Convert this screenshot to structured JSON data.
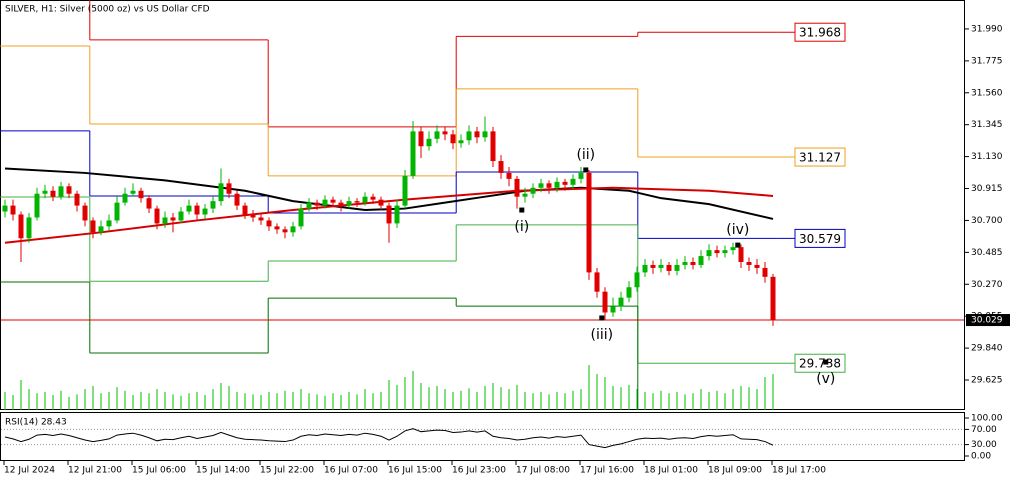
{
  "chart_data": {
    "type": "candlestick",
    "title": "SILVER, H1:  Silver (5000 oz) vs US Dollar CFD",
    "ylim": [
      29.423,
      32.185
    ],
    "yticks": [
      {
        "value": 31.99,
        "label": "31.990"
      },
      {
        "value": 31.775,
        "label": "31.775"
      },
      {
        "value": 31.56,
        "label": "31.560"
      },
      {
        "value": 31.345,
        "label": "31.345"
      },
      {
        "value": 31.13,
        "label": "31.130"
      },
      {
        "value": 30.915,
        "label": "30.915"
      },
      {
        "value": 30.7,
        "label": "30.700"
      },
      {
        "value": 30.485,
        "label": "30.485"
      },
      {
        "value": 30.27,
        "label": "30.270"
      },
      {
        "value": 30.055,
        "label": "30.055"
      },
      {
        "value": 29.84,
        "label": "29.840"
      },
      {
        "value": 29.625,
        "label": "29.625"
      }
    ],
    "x_labels": [
      "12 Jul 2024",
      "12 Jul 21:00",
      "15 Jul 06:00",
      "15 Jul 14:00",
      "15 Jul 22:00",
      "16 Jul 07:00",
      "16 Jul 15:00",
      "16 Jul 23:00",
      "17 Jul 08:00",
      "17 Jul 16:00",
      "18 Jul 01:00",
      "18 Jul 09:00",
      "18 Jul 17:00"
    ],
    "up_color": "#00b400",
    "down_color": "#e00000",
    "ohlc": [
      [
        30.76,
        30.84,
        30.72,
        30.8
      ],
      [
        30.8,
        30.84,
        30.7,
        30.74
      ],
      [
        30.74,
        30.76,
        30.42,
        30.58
      ],
      [
        30.58,
        30.75,
        30.55,
        30.72
      ],
      [
        30.72,
        30.92,
        30.7,
        30.88
      ],
      [
        30.88,
        30.94,
        30.85,
        30.9
      ],
      [
        30.9,
        30.93,
        30.83,
        30.86
      ],
      [
        30.86,
        30.96,
        30.84,
        30.93
      ],
      [
        30.93,
        30.95,
        30.85,
        30.88
      ],
      [
        30.88,
        30.9,
        30.76,
        30.8
      ],
      [
        30.8,
        30.82,
        30.66,
        30.7
      ],
      [
        30.7,
        30.72,
        30.58,
        30.62
      ],
      [
        30.62,
        30.7,
        30.6,
        30.66
      ],
      [
        30.66,
        30.74,
        30.63,
        30.7
      ],
      [
        30.7,
        30.86,
        30.68,
        30.82
      ],
      [
        30.82,
        30.92,
        30.8,
        30.88
      ],
      [
        30.88,
        30.95,
        30.86,
        30.9
      ],
      [
        30.9,
        30.92,
        30.82,
        30.85
      ],
      [
        30.85,
        30.87,
        30.75,
        30.78
      ],
      [
        30.78,
        30.8,
        30.64,
        30.68
      ],
      [
        30.68,
        30.76,
        30.65,
        30.72
      ],
      [
        30.72,
        30.75,
        30.62,
        30.7
      ],
      [
        30.7,
        30.79,
        30.68,
        30.76
      ],
      [
        30.76,
        30.84,
        30.74,
        30.8
      ],
      [
        30.8,
        30.82,
        30.7,
        30.74
      ],
      [
        30.74,
        30.81,
        30.71,
        30.78
      ],
      [
        30.78,
        30.86,
        30.75,
        30.83
      ],
      [
        30.83,
        31.05,
        30.8,
        30.95
      ],
      [
        30.95,
        30.98,
        30.85,
        30.88
      ],
      [
        30.88,
        30.9,
        30.77,
        30.8
      ],
      [
        30.8,
        30.82,
        30.71,
        30.74
      ],
      [
        30.74,
        30.77,
        30.69,
        30.72
      ],
      [
        30.72,
        30.75,
        30.67,
        30.7
      ],
      [
        30.7,
        30.72,
        30.63,
        30.66
      ],
      [
        30.66,
        30.68,
        30.61,
        30.64
      ],
      [
        30.64,
        30.66,
        30.58,
        30.62
      ],
      [
        30.62,
        30.69,
        30.59,
        30.66
      ],
      [
        30.66,
        30.81,
        30.64,
        30.78
      ],
      [
        30.78,
        30.85,
        30.76,
        30.82
      ],
      [
        30.82,
        30.84,
        30.77,
        30.8
      ],
      [
        30.8,
        30.87,
        30.78,
        30.84
      ],
      [
        30.84,
        30.86,
        30.79,
        30.82
      ],
      [
        30.82,
        30.84,
        30.76,
        30.8
      ],
      [
        30.8,
        30.86,
        30.78,
        30.83
      ],
      [
        30.83,
        30.85,
        30.79,
        30.82
      ],
      [
        30.82,
        30.89,
        30.8,
        30.86
      ],
      [
        30.86,
        30.88,
        30.81,
        30.84
      ],
      [
        30.84,
        30.86,
        30.77,
        30.8
      ],
      [
        30.8,
        30.82,
        30.55,
        30.68
      ],
      [
        30.68,
        30.84,
        30.65,
        30.8
      ],
      [
        30.8,
        31.04,
        30.78,
        31.0
      ],
      [
        31.0,
        31.37,
        30.98,
        31.3
      ],
      [
        31.3,
        31.33,
        31.12,
        31.2
      ],
      [
        31.2,
        31.3,
        31.17,
        31.25
      ],
      [
        31.25,
        31.34,
        31.22,
        31.3
      ],
      [
        31.3,
        31.33,
        31.24,
        31.28
      ],
      [
        31.28,
        31.31,
        31.18,
        31.22
      ],
      [
        31.22,
        31.28,
        31.19,
        31.24
      ],
      [
        31.24,
        31.34,
        31.21,
        31.3
      ],
      [
        31.3,
        31.33,
        31.22,
        31.26
      ],
      [
        31.26,
        31.4,
        31.23,
        31.3
      ],
      [
        31.3,
        31.33,
        31.06,
        31.1
      ],
      [
        31.1,
        31.14,
        30.98,
        31.02
      ],
      [
        31.02,
        31.06,
        30.93,
        30.98
      ],
      [
        30.98,
        31.0,
        30.78,
        30.86
      ],
      [
        30.86,
        30.92,
        30.82,
        30.88
      ],
      [
        30.88,
        30.95,
        30.85,
        30.92
      ],
      [
        30.92,
        30.98,
        30.89,
        30.95
      ],
      [
        30.95,
        30.97,
        30.88,
        30.92
      ],
      [
        30.92,
        30.99,
        30.89,
        30.96
      ],
      [
        30.96,
        30.98,
        30.9,
        30.94
      ],
      [
        30.94,
        31.01,
        30.91,
        30.98
      ],
      [
        30.98,
        31.06,
        30.95,
        31.02
      ],
      [
        31.02,
        31.04,
        30.3,
        30.35
      ],
      [
        30.35,
        30.38,
        30.18,
        30.22
      ],
      [
        30.22,
        30.25,
        30.03,
        30.08
      ],
      [
        30.08,
        30.18,
        30.05,
        30.12
      ],
      [
        30.12,
        30.22,
        30.09,
        30.18
      ],
      [
        30.18,
        30.29,
        30.15,
        30.25
      ],
      [
        30.25,
        30.39,
        30.22,
        30.35
      ],
      [
        30.35,
        30.44,
        30.32,
        30.4
      ],
      [
        30.4,
        30.43,
        30.34,
        30.38
      ],
      [
        30.38,
        30.44,
        30.35,
        30.4
      ],
      [
        30.4,
        30.42,
        30.33,
        30.36
      ],
      [
        30.36,
        30.44,
        30.33,
        30.4
      ],
      [
        30.4,
        30.46,
        30.37,
        30.42
      ],
      [
        30.42,
        30.45,
        30.37,
        30.4
      ],
      [
        30.4,
        30.5,
        30.38,
        30.46
      ],
      [
        30.46,
        30.54,
        30.43,
        30.5
      ],
      [
        30.5,
        30.53,
        30.45,
        30.48
      ],
      [
        30.48,
        30.53,
        30.45,
        30.5
      ],
      [
        30.5,
        30.55,
        30.47,
        30.52
      ],
      [
        30.52,
        30.54,
        30.38,
        30.42
      ],
      [
        30.42,
        30.45,
        30.36,
        30.4
      ],
      [
        30.4,
        30.44,
        30.34,
        30.38
      ],
      [
        30.38,
        30.42,
        30.28,
        30.32
      ],
      [
        30.32,
        30.34,
        29.99,
        30.03
      ]
    ],
    "moving_averages": [
      {
        "color": "#000000",
        "x": [
          0,
          10,
          20,
          30,
          36,
          45,
          50,
          55,
          60,
          65,
          72,
          78,
          82,
          88,
          96
        ],
        "values": [
          31.05,
          31.02,
          30.97,
          30.9,
          30.83,
          30.77,
          30.78,
          30.82,
          30.86,
          30.9,
          30.92,
          30.9,
          30.85,
          30.81,
          30.71
        ]
      },
      {
        "color": "#d40000",
        "x": [
          0,
          12,
          24,
          36,
          50,
          64,
          76,
          88,
          96
        ],
        "values": [
          30.55,
          30.62,
          30.7,
          30.77,
          30.84,
          30.9,
          30.92,
          30.9,
          30.865
        ]
      }
    ],
    "level_breaks": [
      -0.6,
      10.6,
      32.9,
      56.4,
      79.1,
      96.6
    ],
    "levels": [
      {
        "color": "#e00000",
        "values": [
          32.25,
          31.916,
          31.33,
          31.94,
          31.968
        ],
        "boxed": true
      },
      {
        "color": "#f0a020",
        "values": [
          31.875,
          31.35,
          31.0,
          31.586,
          31.127
        ],
        "boxed": true
      },
      {
        "color": "#0000c0",
        "values": [
          31.303,
          30.865,
          30.75,
          31.026,
          30.579
        ],
        "boxed": true
      },
      {
        "color": "#40b040",
        "values": [
          30.858,
          30.29,
          30.427,
          30.67,
          29.738
        ],
        "boxed": true
      },
      {
        "color": "#007000",
        "values": [
          30.285,
          29.807,
          30.177,
          30.123,
          29.3
        ],
        "boxed": false
      }
    ],
    "current_price": 30.029,
    "annotations": [
      {
        "text": "(i)",
        "x": 64.6,
        "y": 30.77,
        "position": "below"
      },
      {
        "text": "(ii)",
        "x": 72.6,
        "y": 31.04,
        "position": "above"
      },
      {
        "text": "(iii)",
        "x": 74.6,
        "y": 30.043,
        "position": "below"
      },
      {
        "text": "(iv)",
        "x": 91.6,
        "y": 30.534,
        "position": "above"
      },
      {
        "text": "(v)",
        "x": 102.6,
        "y": 29.746,
        "position": "below"
      }
    ],
    "volume_color": "#00c000",
    "vlim": [
      0,
      100
    ],
    "volume": [
      30,
      25,
      50,
      35,
      28,
      30,
      25,
      32,
      22,
      26,
      35,
      40,
      28,
      30,
      38,
      32,
      25,
      30,
      28,
      35,
      30,
      26,
      24,
      28,
      30,
      25,
      35,
      45,
      40,
      30,
      28,
      26,
      25,
      30,
      28,
      32,
      30,
      35,
      28,
      26,
      24,
      28,
      25,
      30,
      26,
      35,
      28,
      30,
      50,
      42,
      55,
      65,
      45,
      38,
      40,
      35,
      30,
      32,
      36,
      30,
      40,
      45,
      38,
      35,
      42,
      30,
      28,
      30,
      26,
      30,
      28,
      32,
      35,
      75,
      60,
      55,
      40,
      38,
      42,
      35,
      30,
      28,
      32,
      28,
      30,
      26,
      28,
      35,
      30,
      32,
      28,
      35,
      40,
      38,
      35,
      55,
      60
    ],
    "rsi": {
      "title": "RSI(14) 28.43",
      "color": "#000000",
      "ylim": [
        0,
        100
      ],
      "yticks": [
        {
          "value": 100,
          "label": "100.00"
        },
        {
          "value": 70,
          "label": "70.00"
        },
        {
          "value": 30,
          "label": "30.00"
        },
        {
          "value": 0,
          "label": "0.00"
        }
      ],
      "values": [
        50,
        45,
        38,
        44,
        55,
        57,
        54,
        58,
        54,
        48,
        42,
        38,
        41,
        45,
        55,
        58,
        60,
        55,
        48,
        40,
        44,
        43,
        48,
        52,
        46,
        50,
        54,
        62,
        55,
        48,
        44,
        43,
        42,
        40,
        39,
        38,
        42,
        52,
        56,
        54,
        58,
        56,
        54,
        57,
        55,
        60,
        57,
        52,
        42,
        52,
        66,
        72,
        64,
        66,
        68,
        67,
        62,
        63,
        66,
        63,
        66,
        52,
        48,
        46,
        42,
        44,
        48,
        50,
        47,
        51,
        49,
        52,
        55,
        30,
        26,
        22,
        28,
        32,
        38,
        44,
        47,
        46,
        47,
        44,
        47,
        48,
        46,
        51,
        54,
        52,
        54,
        56,
        45,
        44,
        43,
        38,
        28.43
      ]
    }
  }
}
